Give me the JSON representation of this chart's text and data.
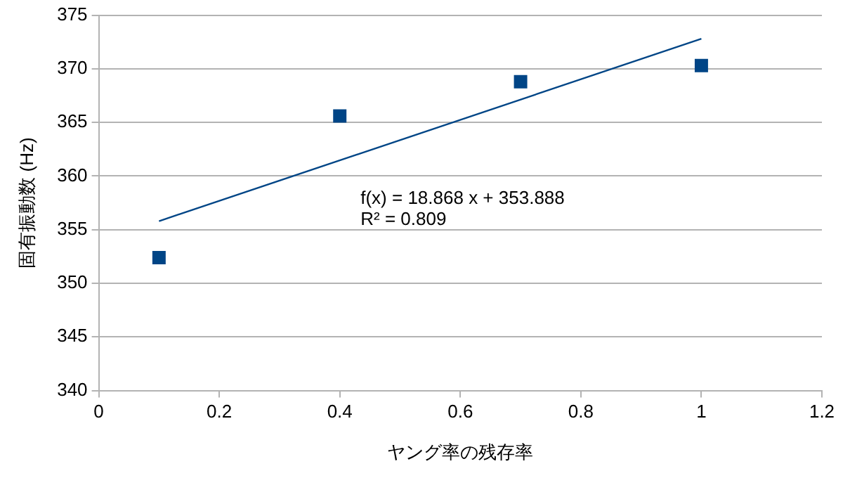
{
  "chart_data": {
    "type": "scatter",
    "xlabel": "ヤング率の残存率",
    "ylabel": "固有振動数 (Hz)",
    "x": [
      0.1,
      0.4,
      0.7,
      1.0
    ],
    "series": [
      {
        "type": "scatter",
        "color": "#004586",
        "values": [
          352.4,
          365.6,
          368.8,
          370.3
        ],
        "marker": "square"
      },
      {
        "type": "line",
        "color": "#004586",
        "x": [
          0.1,
          1.0
        ],
        "values": [
          355.8,
          372.8
        ],
        "marker": "none"
      }
    ],
    "xlim": [
      0,
      1.2
    ],
    "xticks": [
      0,
      0.2,
      0.4,
      0.6,
      0.8,
      1,
      1.2
    ],
    "ylim": [
      340,
      375
    ],
    "yticks": [
      340,
      345,
      350,
      355,
      360,
      365,
      370,
      375
    ],
    "annotations": [
      "f(x) = 18.868 x + 353.888",
      "R² = 0.809"
    ],
    "grid": "y",
    "legend": false
  }
}
